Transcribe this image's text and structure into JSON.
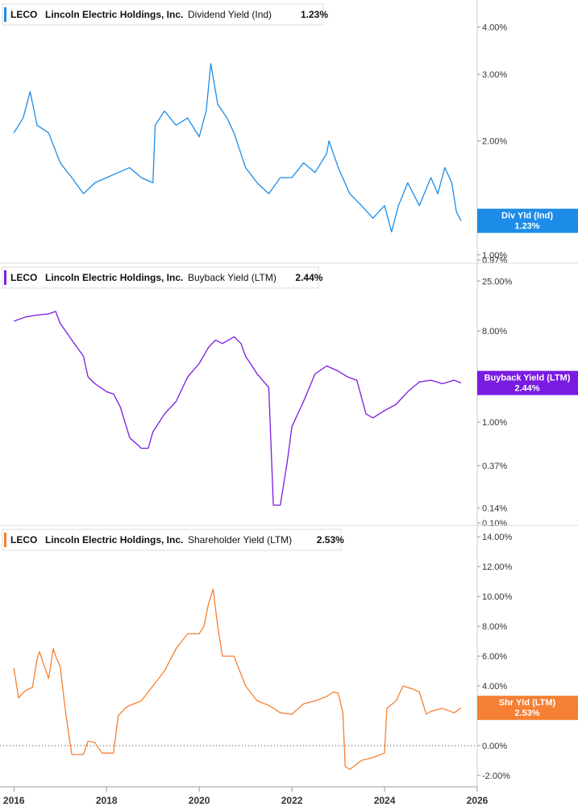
{
  "chart_data": [
    {
      "type": "line",
      "ticker": "LECO",
      "company": "Lincoln Electric Holdings, Inc.",
      "metric": "Dividend Yield (Ind)",
      "current_value": "1.23%",
      "badge_line1": "Div Yld (Ind)",
      "badge_line2": "1.23%",
      "color": "#1c8ce8",
      "scale": "log",
      "ylim": [
        0.97,
        4.6
      ],
      "y_ticks": [
        4.0,
        3.0,
        2.0,
        1.0,
        0.97
      ],
      "y_tick_labels": [
        "4.00%",
        "3.00%",
        "2.00%",
        "1.00%",
        "0.97%"
      ],
      "series": [
        {
          "x": [
            2016.0,
            2016.2,
            2016.35,
            2016.5,
            2016.75,
            2017.0,
            2017.25,
            2017.5,
            2017.75,
            2018.0,
            2018.25,
            2018.5,
            2018.75,
            2019.0,
            2019.05,
            2019.25,
            2019.5,
            2019.75,
            2020.0,
            2020.15,
            2020.25,
            2020.4,
            2020.6,
            2020.75,
            2021.0,
            2021.25,
            2021.5,
            2021.75,
            2022.0,
            2022.25,
            2022.5,
            2022.75,
            2022.8,
            2023.0,
            2023.25,
            2023.5,
            2023.75,
            2024.0,
            2024.15,
            2024.3,
            2024.5,
            2024.75,
            2025.0,
            2025.15,
            2025.3,
            2025.45,
            2025.55,
            2025.65
          ],
          "y": [
            2.1,
            2.3,
            2.7,
            2.2,
            2.1,
            1.75,
            1.6,
            1.45,
            1.55,
            1.6,
            1.65,
            1.7,
            1.6,
            1.55,
            2.2,
            2.4,
            2.2,
            2.3,
            2.05,
            2.4,
            3.2,
            2.5,
            2.3,
            2.1,
            1.7,
            1.55,
            1.45,
            1.6,
            1.6,
            1.75,
            1.65,
            1.85,
            2.0,
            1.7,
            1.45,
            1.35,
            1.25,
            1.35,
            1.15,
            1.35,
            1.55,
            1.35,
            1.6,
            1.45,
            1.7,
            1.55,
            1.3,
            1.23
          ]
        }
      ]
    },
    {
      "type": "line",
      "ticker": "LECO",
      "company": "Lincoln Electric Holdings, Inc.",
      "metric": "Buyback Yield (LTM)",
      "current_value": "2.44%",
      "badge_line1": "Buyback Yield (LTM)",
      "badge_line2": "2.44%",
      "color": "#7a1be0",
      "scale": "log",
      "ylim": [
        0.1,
        35
      ],
      "y_ticks": [
        25.0,
        8.0,
        1.0,
        0.37,
        0.14,
        0.1
      ],
      "y_tick_labels": [
        "25.00%",
        "8.00%",
        "1.00%",
        "0.37%",
        "0.14%",
        "0.10%"
      ],
      "series": [
        {
          "x": [
            2016.0,
            2016.25,
            2016.5,
            2016.75,
            2016.9,
            2017.0,
            2017.25,
            2017.5,
            2017.6,
            2017.75,
            2018.0,
            2018.15,
            2018.3,
            2018.5,
            2018.75,
            2018.9,
            2019.0,
            2019.25,
            2019.5,
            2019.75,
            2020.0,
            2020.2,
            2020.35,
            2020.5,
            2020.75,
            2020.9,
            2021.0,
            2021.25,
            2021.4,
            2021.5,
            2021.6,
            2021.75,
            2021.9,
            2022.0,
            2022.25,
            2022.5,
            2022.75,
            2023.0,
            2023.2,
            2023.4,
            2023.6,
            2023.75,
            2024.0,
            2024.25,
            2024.5,
            2024.75,
            2025.0,
            2025.25,
            2025.5,
            2025.65
          ],
          "y": [
            10.0,
            11.0,
            11.5,
            11.8,
            12.5,
            9.5,
            6.5,
            4.5,
            2.8,
            2.4,
            2.0,
            1.9,
            1.4,
            0.7,
            0.55,
            0.55,
            0.8,
            1.2,
            1.6,
            2.8,
            3.8,
            5.5,
            6.5,
            6.0,
            7.0,
            6.0,
            4.5,
            3.0,
            2.5,
            2.2,
            0.15,
            0.15,
            0.4,
            0.9,
            1.6,
            3.0,
            3.6,
            3.2,
            2.8,
            2.6,
            1.2,
            1.1,
            1.3,
            1.5,
            2.0,
            2.5,
            2.6,
            2.4,
            2.6,
            2.44
          ]
        }
      ]
    },
    {
      "type": "line",
      "ticker": "LECO",
      "company": "Lincoln Electric Holdings, Inc.",
      "metric": "Shareholder Yield (LTM)",
      "current_value": "2.53%",
      "badge_line1": "Shr Yld (LTM)",
      "badge_line2": "2.53%",
      "color": "#f58033",
      "scale": "linear",
      "ylim": [
        -2.6,
        14.5
      ],
      "y_ticks": [
        14.0,
        12.0,
        10.0,
        8.0,
        6.0,
        4.0,
        2.0,
        0.0,
        -2.0
      ],
      "y_tick_labels": [
        "14.00%",
        "12.00%",
        "10.00%",
        "8.00%",
        "6.00%",
        "4.00%",
        "2.00%",
        "0.00%",
        "-2.00%"
      ],
      "zero_line": 0.0,
      "series": [
        {
          "x": [
            2016.0,
            2016.1,
            2016.25,
            2016.4,
            2016.5,
            2016.55,
            2016.75,
            2016.85,
            2016.9,
            2017.0,
            2017.1,
            2017.2,
            2017.25,
            2017.5,
            2017.6,
            2017.75,
            2017.9,
            2018.0,
            2018.15,
            2018.25,
            2018.4,
            2018.5,
            2018.75,
            2019.0,
            2019.25,
            2019.5,
            2019.75,
            2020.0,
            2020.1,
            2020.2,
            2020.3,
            2020.4,
            2020.5,
            2020.75,
            2021.0,
            2021.25,
            2021.5,
            2021.75,
            2022.0,
            2022.25,
            2022.5,
            2022.75,
            2022.9,
            2023.0,
            2023.1,
            2023.15,
            2023.25,
            2023.5,
            2023.75,
            2024.0,
            2024.05,
            2024.25,
            2024.4,
            2024.6,
            2024.75,
            2024.9,
            2025.0,
            2025.25,
            2025.5,
            2025.65
          ],
          "y": [
            5.2,
            3.2,
            3.7,
            3.9,
            5.8,
            6.3,
            4.5,
            6.5,
            6.0,
            5.3,
            2.6,
            0.4,
            -0.6,
            -0.6,
            0.3,
            0.2,
            -0.5,
            -0.5,
            -0.5,
            2.0,
            2.5,
            2.7,
            3.0,
            4.0,
            5.0,
            6.5,
            7.5,
            7.5,
            8.0,
            9.5,
            10.5,
            8.0,
            6.0,
            6.0,
            4.0,
            3.0,
            2.7,
            2.2,
            2.1,
            2.8,
            3.0,
            3.3,
            3.6,
            3.5,
            2.2,
            -1.4,
            -1.6,
            -1.0,
            -0.8,
            -0.5,
            2.5,
            3.0,
            4.0,
            3.8,
            3.6,
            2.1,
            2.3,
            2.5,
            2.2,
            2.53
          ]
        }
      ]
    }
  ],
  "x_axis": {
    "ticks": [
      2016,
      2018,
      2020,
      2022,
      2024,
      2026
    ],
    "tick_labels": [
      "2016",
      "2018",
      "2020",
      "2022",
      "2024",
      "2026"
    ],
    "xlim": [
      2015.7,
      2026.0
    ]
  }
}
